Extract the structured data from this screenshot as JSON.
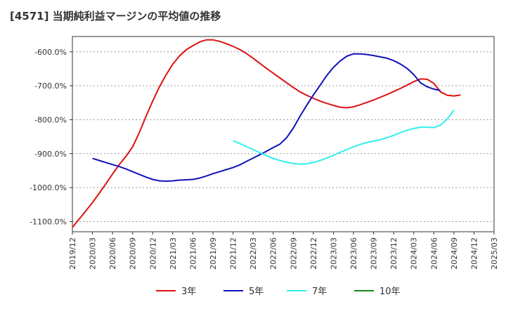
{
  "title": "[4571]  当期純利益マージンの平均値の推移",
  "chart_data": {
    "type": "line",
    "title": "[4571]  当期純利益マージンの平均値の推移",
    "xlabel": "",
    "ylabel": "",
    "x_ticks": [
      "2019/12",
      "2020/03",
      "2020/06",
      "2020/09",
      "2020/12",
      "2021/03",
      "2021/06",
      "2021/09",
      "2021/12",
      "2022/03",
      "2022/06",
      "2022/09",
      "2022/12",
      "2023/03",
      "2023/06",
      "2023/09",
      "2023/12",
      "2024/03",
      "2024/06",
      "2024/09",
      "2024/12",
      "2025/03"
    ],
    "y_ticks": [
      -600,
      -700,
      -800,
      -900,
      -1000,
      -1100
    ],
    "y_tick_labels": [
      "-600.0%",
      "-700.0%",
      "-800.0%",
      "-900.0%",
      "-1000.0%",
      "-1100.0%"
    ],
    "ylim": [
      -1130,
      -555
    ],
    "xlim": [
      "2019/12",
      "2025/03"
    ],
    "grid": "horizontal dashed",
    "legend_position": "bottom",
    "series": [
      {
        "name": "3年",
        "color": "#dd1111",
        "points": [
          [
            "2019/12",
            -1117
          ],
          [
            "2020/01",
            -1093
          ],
          [
            "2020/02",
            -1069
          ],
          [
            "2020/03",
            -1044
          ],
          [
            "2020/04",
            -1017
          ],
          [
            "2020/05",
            -989
          ],
          [
            "2020/06",
            -960
          ],
          [
            "2020/07",
            -932
          ],
          [
            "2020/08",
            -908
          ],
          [
            "2020/09",
            -880
          ],
          [
            "2020/10",
            -838
          ],
          [
            "2020/11",
            -790
          ],
          [
            "2020/12",
            -745
          ],
          [
            "2021/01",
            -703
          ],
          [
            "2021/02",
            -668
          ],
          [
            "2021/03",
            -636
          ],
          [
            "2021/04",
            -612
          ],
          [
            "2021/05",
            -594
          ],
          [
            "2021/06",
            -582
          ],
          [
            "2021/07",
            -571
          ],
          [
            "2021/08",
            -565
          ],
          [
            "2021/09",
            -565
          ],
          [
            "2021/10",
            -569
          ],
          [
            "2021/11",
            -576
          ],
          [
            "2021/12",
            -584
          ],
          [
            "2022/01",
            -593
          ],
          [
            "2022/02",
            -605
          ],
          [
            "2022/03",
            -619
          ],
          [
            "2022/04",
            -634
          ],
          [
            "2022/05",
            -649
          ],
          [
            "2022/06",
            -663
          ],
          [
            "2022/07",
            -677
          ],
          [
            "2022/08",
            -691
          ],
          [
            "2022/09",
            -705
          ],
          [
            "2022/10",
            -718
          ],
          [
            "2022/11",
            -728
          ],
          [
            "2022/12",
            -737
          ],
          [
            "2023/01",
            -745
          ],
          [
            "2023/02",
            -752
          ],
          [
            "2023/03",
            -758
          ],
          [
            "2023/04",
            -763
          ],
          [
            "2023/05",
            -765
          ],
          [
            "2023/06",
            -762
          ],
          [
            "2023/07",
            -756
          ],
          [
            "2023/08",
            -749
          ],
          [
            "2023/09",
            -742
          ],
          [
            "2023/10",
            -734
          ],
          [
            "2023/11",
            -726
          ],
          [
            "2023/12",
            -717
          ],
          [
            "2024/01",
            -708
          ],
          [
            "2024/02",
            -698
          ],
          [
            "2024/03",
            -688
          ],
          [
            "2024/04",
            -680
          ],
          [
            "2024/05",
            -681
          ],
          [
            "2024/06",
            -693
          ],
          [
            "2024/07",
            -718
          ],
          [
            "2024/08",
            -728
          ],
          [
            "2024/09",
            -730
          ],
          [
            "2024/10",
            -727
          ]
        ]
      },
      {
        "name": "5年",
        "color": "#1111bb",
        "points": [
          [
            "2020/03",
            -914
          ],
          [
            "2020/04",
            -920
          ],
          [
            "2020/05",
            -926
          ],
          [
            "2020/06",
            -932
          ],
          [
            "2020/07",
            -938
          ],
          [
            "2020/08",
            -945
          ],
          [
            "2020/09",
            -953
          ],
          [
            "2020/10",
            -961
          ],
          [
            "2020/11",
            -969
          ],
          [
            "2020/12",
            -976
          ],
          [
            "2021/01",
            -980
          ],
          [
            "2021/02",
            -981
          ],
          [
            "2021/03",
            -980
          ],
          [
            "2021/04",
            -978
          ],
          [
            "2021/05",
            -977
          ],
          [
            "2021/06",
            -976
          ],
          [
            "2021/07",
            -972
          ],
          [
            "2021/08",
            -966
          ],
          [
            "2021/09",
            -959
          ],
          [
            "2021/10",
            -953
          ],
          [
            "2021/11",
            -947
          ],
          [
            "2021/12",
            -941
          ],
          [
            "2022/01",
            -933
          ],
          [
            "2022/02",
            -923
          ],
          [
            "2022/03",
            -913
          ],
          [
            "2022/04",
            -903
          ],
          [
            "2022/05",
            -893
          ],
          [
            "2022/06",
            -882
          ],
          [
            "2022/07",
            -872
          ],
          [
            "2022/08",
            -853
          ],
          [
            "2022/09",
            -825
          ],
          [
            "2022/10",
            -790
          ],
          [
            "2022/11",
            -758
          ],
          [
            "2022/12",
            -727
          ],
          [
            "2023/01",
            -699
          ],
          [
            "2023/02",
            -670
          ],
          [
            "2023/03",
            -646
          ],
          [
            "2023/04",
            -627
          ],
          [
            "2023/05",
            -613
          ],
          [
            "2023/06",
            -606
          ],
          [
            "2023/07",
            -606
          ],
          [
            "2023/08",
            -608
          ],
          [
            "2023/09",
            -611
          ],
          [
            "2023/10",
            -615
          ],
          [
            "2023/11",
            -619
          ],
          [
            "2023/12",
            -626
          ],
          [
            "2024/01",
            -636
          ],
          [
            "2024/02",
            -649
          ],
          [
            "2024/03",
            -667
          ],
          [
            "2024/04",
            -691
          ],
          [
            "2024/05",
            -703
          ],
          [
            "2024/06",
            -710
          ],
          [
            "2024/07",
            -714
          ]
        ]
      },
      {
        "name": "7年",
        "color": "#33eeee",
        "points": [
          [
            "2021/12",
            -862
          ],
          [
            "2022/01",
            -870
          ],
          [
            "2022/02",
            -879
          ],
          [
            "2022/03",
            -888
          ],
          [
            "2022/04",
            -897
          ],
          [
            "2022/05",
            -906
          ],
          [
            "2022/06",
            -914
          ],
          [
            "2022/07",
            -920
          ],
          [
            "2022/08",
            -925
          ],
          [
            "2022/09",
            -929
          ],
          [
            "2022/10",
            -931
          ],
          [
            "2022/11",
            -930
          ],
          [
            "2022/12",
            -926
          ],
          [
            "2023/01",
            -920
          ],
          [
            "2023/02",
            -913
          ],
          [
            "2023/03",
            -905
          ],
          [
            "2023/04",
            -896
          ],
          [
            "2023/05",
            -888
          ],
          [
            "2023/06",
            -880
          ],
          [
            "2023/07",
            -873
          ],
          [
            "2023/08",
            -867
          ],
          [
            "2023/09",
            -863
          ],
          [
            "2023/10",
            -859
          ],
          [
            "2023/11",
            -853
          ],
          [
            "2023/12",
            -846
          ],
          [
            "2024/01",
            -838
          ],
          [
            "2024/02",
            -831
          ],
          [
            "2024/03",
            -826
          ],
          [
            "2024/04",
            -822
          ],
          [
            "2024/05",
            -822
          ],
          [
            "2024/06",
            -823
          ],
          [
            "2024/07",
            -816
          ],
          [
            "2024/08",
            -798
          ],
          [
            "2024/09",
            -772
          ]
        ]
      },
      {
        "name": "10年",
        "color": "#118811",
        "points": []
      }
    ]
  }
}
